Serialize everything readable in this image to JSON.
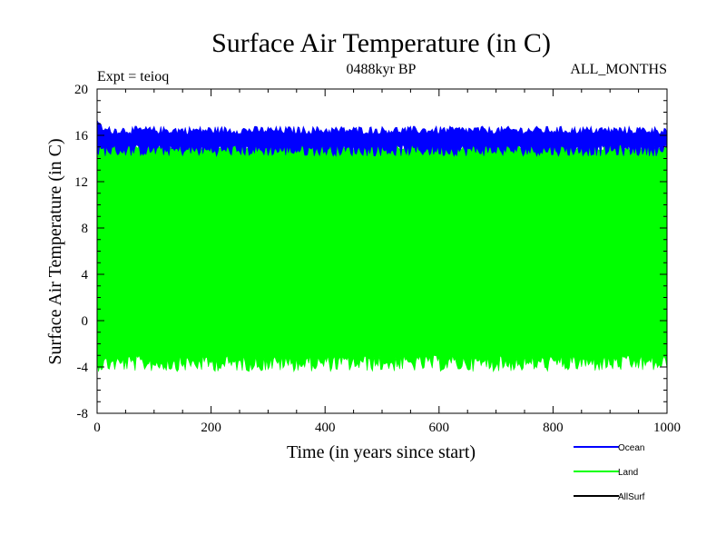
{
  "chart_data": {
    "type": "area",
    "title": "Surface Air Temperature (in C)",
    "subtitle_left": "Expt = teioq",
    "subtitle_center": "0488kyr BP",
    "subtitle_right": "ALL_MONTHS",
    "xlabel": "Time (in years since start)",
    "ylabel": "Surface Air Temperature (in C)",
    "xlim": [
      0,
      1000
    ],
    "ylim": [
      -8,
      20
    ],
    "x_ticks": [
      {
        "value": 0,
        "label": "0"
      },
      {
        "value": 200,
        "label": "200"
      },
      {
        "value": 400,
        "label": "400"
      },
      {
        "value": 600,
        "label": "600"
      },
      {
        "value": 800,
        "label": "800"
      },
      {
        "value": 1000,
        "label": "1000"
      }
    ],
    "y_ticks": [
      {
        "value": -8,
        "label": "-8"
      },
      {
        "value": -4,
        "label": "-4"
      },
      {
        "value": 0,
        "label": "0"
      },
      {
        "value": 4,
        "label": "4"
      },
      {
        "value": 8,
        "label": "8"
      },
      {
        "value": 12,
        "label": "12"
      },
      {
        "value": 16,
        "label": "16"
      },
      {
        "value": 20,
        "label": "20"
      }
    ],
    "x_minor_step": 50,
    "y_minor_step": 1,
    "series": [
      {
        "name": "Land",
        "color": "#00ff00",
        "x_range": [
          0,
          1000
        ],
        "lower_envelope": [
          -3.0,
          -4.4
        ],
        "upper_envelope": [
          14.7,
          15.4
        ],
        "start_peak": 15.8
      },
      {
        "name": "Ocean",
        "color": "#0000ff",
        "x_range": [
          0,
          1000
        ],
        "lower_envelope": [
          14.2,
          15.2
        ],
        "upper_envelope": [
          16.1,
          16.8
        ],
        "start_peak": 17.3
      },
      {
        "name": "AllSurf",
        "color": "#000000",
        "x_range": [
          0,
          1000
        ],
        "lower_envelope": null,
        "upper_envelope": null,
        "start_peak": null
      }
    ],
    "legend": {
      "placement": "bottom-right",
      "entries": [
        "Ocean",
        "Land",
        "AllSurf"
      ]
    }
  }
}
